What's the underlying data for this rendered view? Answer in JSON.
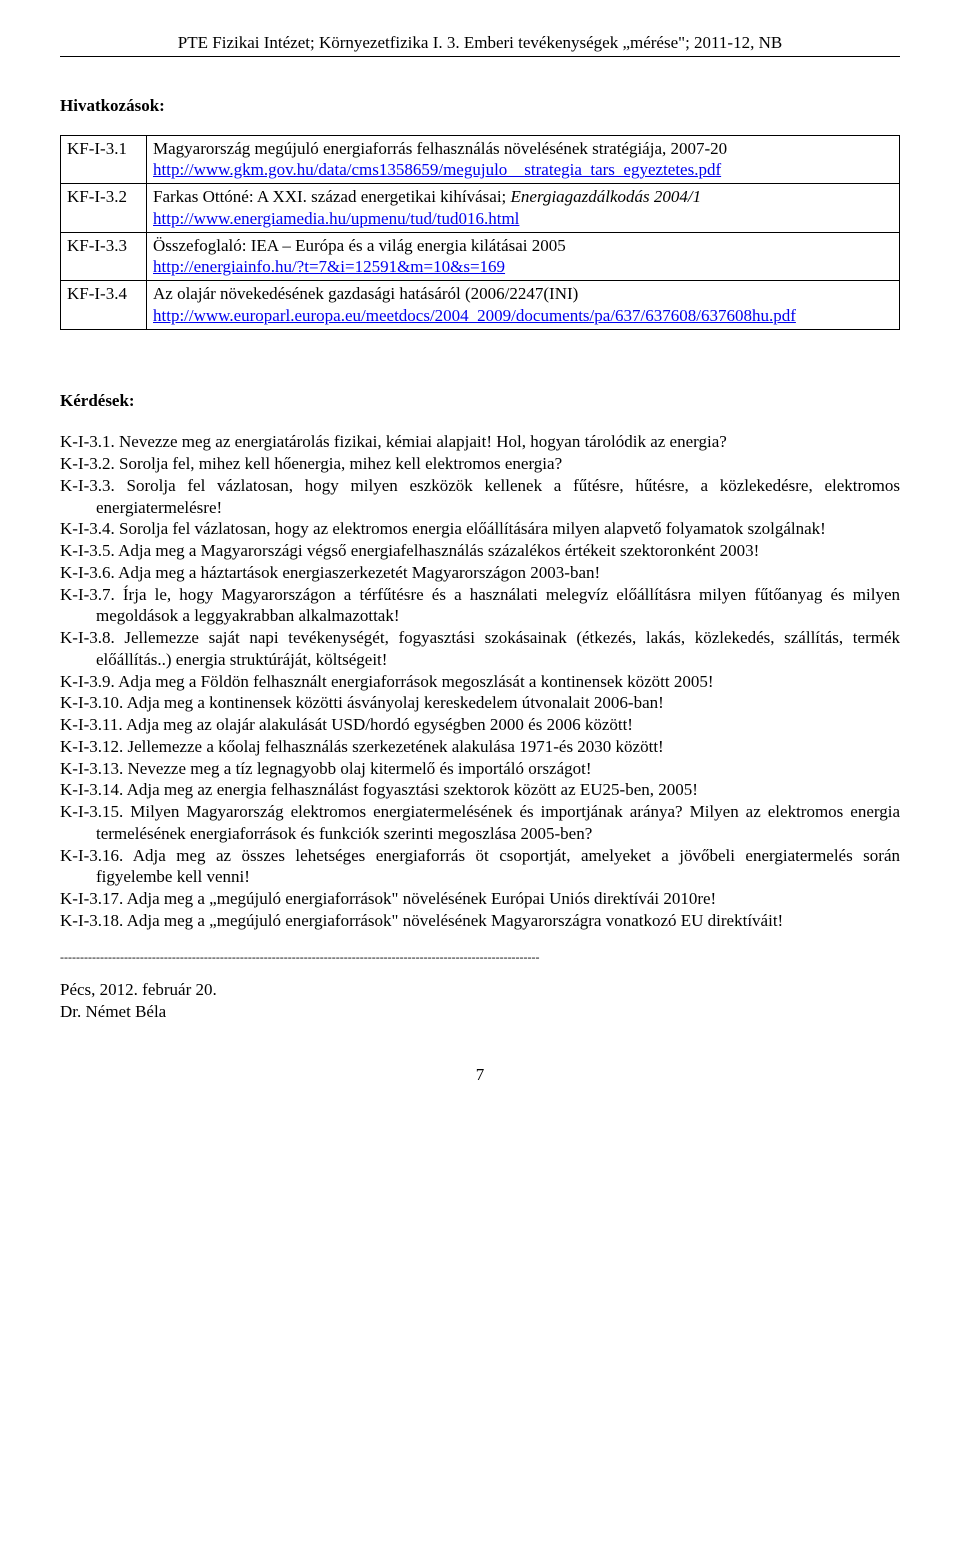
{
  "header": "PTE Fizikai Intézet; Környezetfizika I. 3. Emberi tevékenységek „mérése\"; 2011-12, NB",
  "references": {
    "title": "Hivatkozások:",
    "rows": [
      {
        "id": "KF-I-3.1",
        "text": "Magyarország megújuló energiaforrás felhasználás növelésének stratégiája, 2007-20",
        "url": "http://www.gkm.gov.hu/data/cms1358659/megujulo__strategia_tars_egyeztetes.pdf"
      },
      {
        "id": "KF-I-3.2",
        "prefix": "Farkas Ottóné: A XXI. század energetikai kihívásai; ",
        "italic": "Energiagazdálkodás 2004/1",
        "url": "http://www.energiamedia.hu/upmenu/tud/tud016.html"
      },
      {
        "id": "KF-I-3.3",
        "text": "Összefoglaló: IEA – Európa és a világ energia kilátásai 2005",
        "url": "http://energiainfo.hu/?t=7&i=12591&m=10&s=169"
      },
      {
        "id": "KF-I-3.4",
        "text": "Az olajár növekedésének gazdasági hatásáról (2006/2247(INI)",
        "url": "http://www.europarl.europa.eu/meetdocs/2004_2009/documents/pa/637/637608/637608hu.pdf"
      }
    ]
  },
  "questions": {
    "title": "Kérdések:",
    "items": [
      {
        "id": "K-I-3.1.",
        "text": "Nevezze meg az energiatárolás fizikai, kémiai alapjait! Hol, hogyan tárolódik az energia?",
        "hang": true
      },
      {
        "id": "K-I-3.2.",
        "text": "Sorolja fel, mihez kell hőenergia, mihez kell elektromos energia?",
        "hang": false
      },
      {
        "id": "K-I-3.3.",
        "text": "Sorolja fel vázlatosan, hogy milyen eszközök kellenek a fűtésre, hűtésre, a közlekedésre, elektromos energiatermelésre!",
        "hang": true
      },
      {
        "id": "K-I-3.4.",
        "text": "Sorolja fel vázlatosan, hogy az elektromos energia előállítására milyen alapvető folyamatok szolgálnak!",
        "hang": true
      },
      {
        "id": "K-I-3.5.",
        "text": "Adja meg a Magyarországi végső energiafelhasználás százalékos értékeit szektoronként 2003!",
        "hang": true
      },
      {
        "id": "K-I-3.6.",
        "text": "Adja meg a háztartások energiaszerkezetét Magyarországon 2003-ban!",
        "hang": false
      },
      {
        "id": "K-I-3.7.",
        "text": "Írja le, hogy Magyarországon a térfűtésre és a használati melegvíz előállításra milyen fűtőanyag és milyen megoldások a leggyakrabban alkalmazottak!",
        "hang": true
      },
      {
        "id": "K-I-3.8.",
        "text": "Jellemezze saját napi tevékenységét, fogyasztási szokásainak (étkezés, lakás, közlekedés, szállítás, termék előállítás..) energia struktúráját, költségeit!",
        "hang": true
      },
      {
        "id": "K-I-3.9.",
        "text": "Adja meg a Földön felhasznált energiaforrások megoszlását a kontinensek között 2005!",
        "hang": false
      },
      {
        "id": "K-I-3.10.",
        "text": "Adja meg a kontinensek közötti ásványolaj kereskedelem útvonalait 2006-ban!",
        "hang": false
      },
      {
        "id": "K-I-3.11.",
        "text": "Adja meg az olajár alakulását USD/hordó egységben 2000 és 2006 között!",
        "hang": false
      },
      {
        "id": "K-I-3.12.",
        "text": "Jellemezze a kőolaj felhasználás szerkezetének alakulása 1971-és 2030 között!",
        "hang": false
      },
      {
        "id": "K-I-3.13.",
        "text": "Nevezze meg a tíz legnagyobb olaj kitermelő és importáló országot!",
        "hang": false
      },
      {
        "id": "K-I-3.14.",
        "text": "Adja meg az energia felhasználást fogyasztási szektorok között az EU25-ben, 2005!",
        "hang": false
      },
      {
        "id": "K-I-3.15.",
        "text": "Milyen Magyarország elektromos energiatermelésének és importjának aránya? Milyen az elektromos energia termelésének energiaforrások és funkciók szerinti megoszlása 2005-ben?",
        "hang": true
      },
      {
        "id": "K-I-3.16.",
        "text": "Adja meg az összes lehetséges energiaforrás öt csoportját, amelyeket a jövőbeli energiatermelés során figyelembe kell venni!",
        "hang": true
      },
      {
        "id": "K-I-3.17.",
        "text": "Adja meg a „megújuló energiaforrások\" növelésének Európai Uniós direktívái 2010re!",
        "hang": false
      },
      {
        "id": "K-I-3.18.",
        "text": "Adja meg a „megújuló energiaforrások\" növelésének Magyarországra vonatkozó EU direktíváit!",
        "hang": true
      }
    ]
  },
  "dashes": "------------------------------------------------------------------------------------------------------------------------",
  "signature": {
    "place_date": "Pécs, 2012. február 20.",
    "name": "Dr. Német Béla"
  },
  "page_number": "7"
}
